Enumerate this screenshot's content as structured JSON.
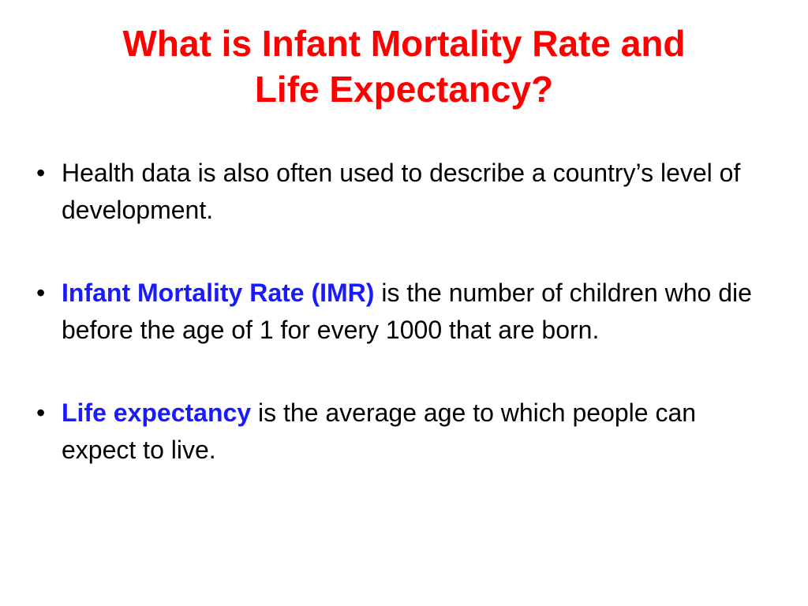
{
  "slide": {
    "title_lines": [
      "What is Infant Mortality Rate and",
      "Life Expectancy?"
    ],
    "title_color": "#ff0000",
    "term_color": "#1a1aff",
    "bullet_glyph": "•",
    "bullets": [
      {
        "term": "",
        "text": "Health data is also often used to describe a country’s level of development."
      },
      {
        "term": "Infant Mortality Rate (IMR)",
        "text": " is the number of children who die before the age of 1 for every 1000 that are born."
      },
      {
        "term": "Life expectancy",
        "text": " is the average age to which people can expect to live."
      }
    ]
  }
}
